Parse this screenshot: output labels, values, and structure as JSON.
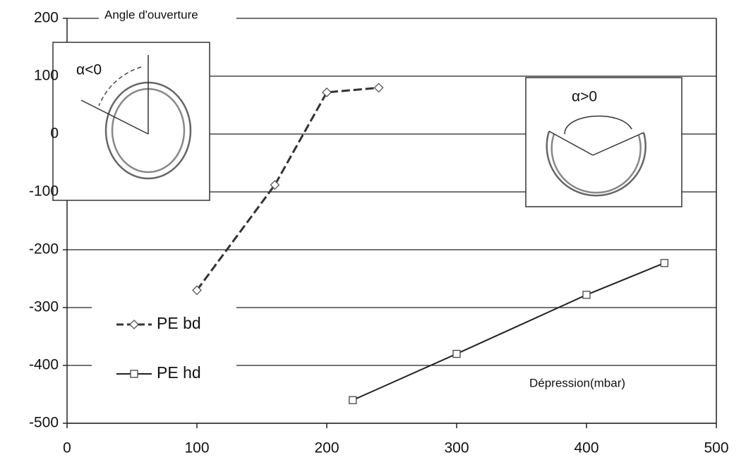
{
  "chart_data": {
    "type": "line",
    "y_label": "Angle d'ouverture",
    "x_label": "Dépression(mbar)",
    "annotations": [
      "α<0",
      "α>0"
    ],
    "xlim": [
      0,
      500
    ],
    "xticks": [
      0,
      100,
      200,
      300,
      400,
      500
    ],
    "ylim": [
      -500,
      200
    ],
    "yticks": [
      -500,
      -400,
      -300,
      -200,
      -100,
      0,
      100,
      200
    ],
    "grid": true,
    "legend": "lower left",
    "series": [
      {
        "name": "PE bd",
        "color": "#333333",
        "dashed": true,
        "marker": "diamond",
        "x": [
          100,
          160,
          200,
          240
        ],
        "values": [
          -270,
          -88,
          72,
          80
        ]
      },
      {
        "name": "PE hd",
        "color": "#222222",
        "dashed": false,
        "marker": "square",
        "x": [
          220,
          300,
          400,
          460
        ],
        "values": [
          -460,
          -380,
          -278,
          -223
        ]
      }
    ]
  }
}
